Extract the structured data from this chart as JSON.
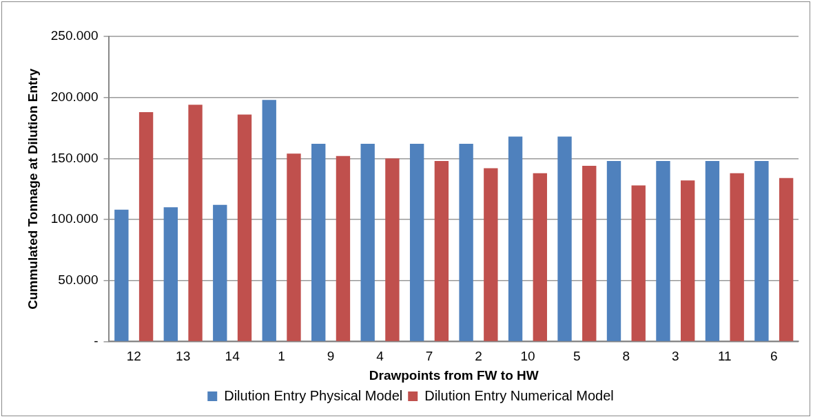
{
  "chart_data": {
    "type": "bar",
    "xlabel": "Drawpoints from FW to HW",
    "ylabel": "Cummulated Tonnage at Dilution Entry",
    "categories": [
      "12",
      "13",
      "14",
      "1",
      "9",
      "4",
      "7",
      "2",
      "10",
      "5",
      "8",
      "3",
      "11",
      "6"
    ],
    "series": [
      {
        "name": "Dilution Entry Physical Model",
        "color": "#4f81bd",
        "values": [
          108000,
          110000,
          112000,
          198000,
          162000,
          162000,
          162000,
          162000,
          168000,
          168000,
          148000,
          148000,
          148000,
          148000
        ]
      },
      {
        "name": "Dilution Entry Numerical Model",
        "color": "#c0504d",
        "values": [
          188000,
          194000,
          186000,
          154000,
          152000,
          150000,
          148000,
          142000,
          138000,
          144000,
          128000,
          132000,
          138000,
          134000
        ]
      }
    ],
    "ylim": [
      0,
      250000
    ],
    "yticks": [
      {
        "value": 0,
        "label": "-"
      },
      {
        "value": 50000,
        "label": "50.000"
      },
      {
        "value": 100000,
        "label": "100.000"
      },
      {
        "value": 150000,
        "label": "150.000"
      },
      {
        "value": 200000,
        "label": "200.000"
      },
      {
        "value": 250000,
        "label": "250.000"
      }
    ],
    "grid": "y",
    "legend": "bottom"
  }
}
